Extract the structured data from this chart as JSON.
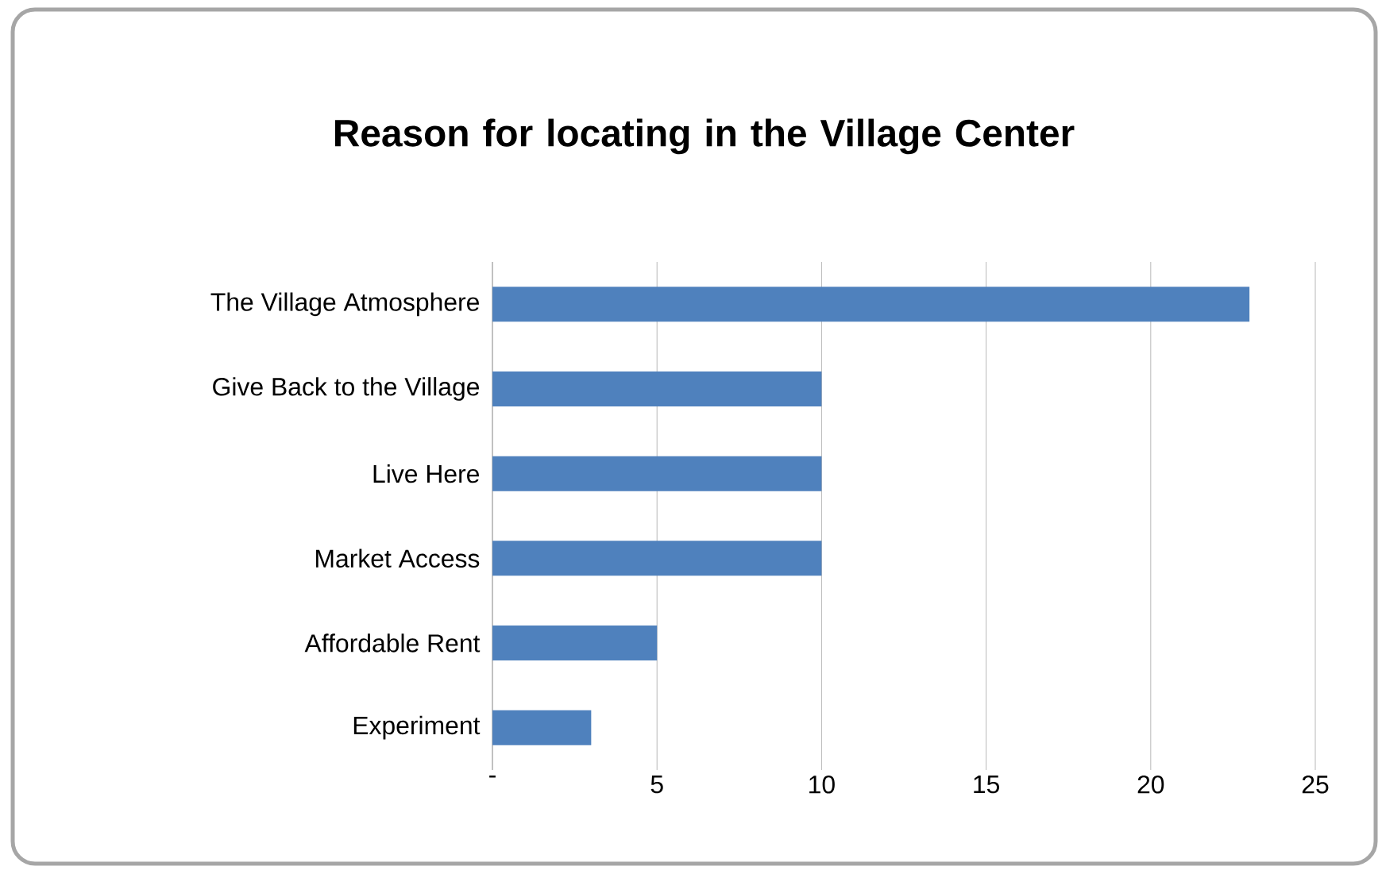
{
  "chart_data": {
    "type": "bar",
    "orientation": "horizontal",
    "title": "Reason for locating in the Village Center",
    "categories": [
      "The Village Atmosphere",
      "Give Back to the Village",
      "Live Here",
      "Market Access",
      "Affordable Rent",
      "Experiment"
    ],
    "values": [
      23,
      10,
      10,
      10,
      5,
      3
    ],
    "color": "#4f81bd",
    "xlim": [
      0,
      25
    ],
    "xticks": [
      {
        "value": 0,
        "label": "-"
      },
      5,
      10,
      15,
      20,
      25
    ],
    "grid": "x"
  }
}
